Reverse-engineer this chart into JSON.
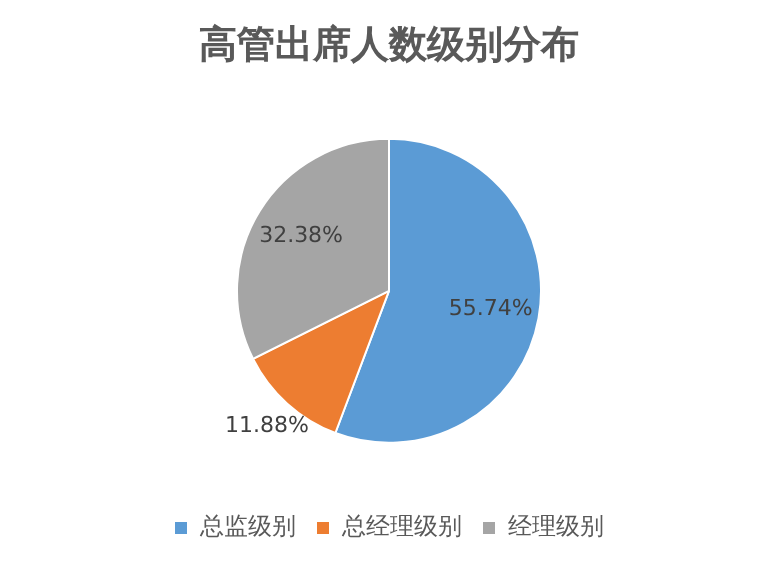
{
  "chart_data": {
    "type": "pie",
    "title": "高管出席人数级别分布",
    "categories": [
      "总监级别",
      "总经理级别",
      "经理级别"
    ],
    "values": [
      55.74,
      11.88,
      32.38
    ],
    "colors": [
      "#5b9bd5",
      "#ed7d31",
      "#a5a5a5"
    ],
    "value_labels": [
      "55.74%",
      "11.88%",
      "32.38%"
    ],
    "legend": "bottom"
  }
}
